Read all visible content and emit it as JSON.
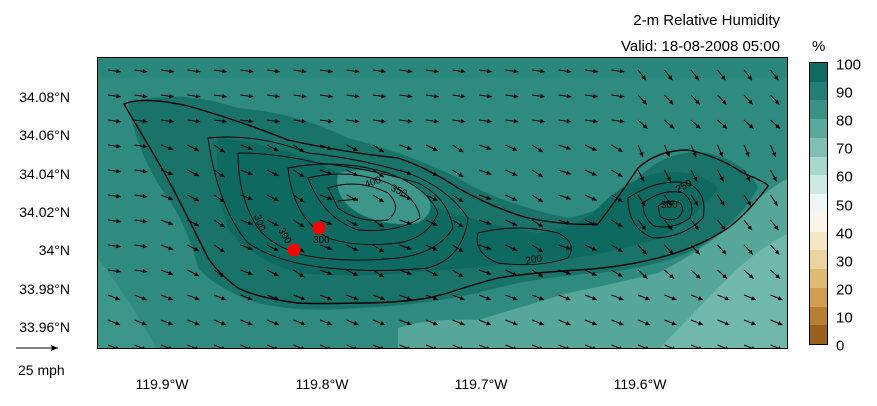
{
  "title": "2-m Relative Humidity",
  "valid_time": "Valid: 18-08-2008 05:00",
  "colorbar": {
    "unit": "%",
    "ticks": [
      "100",
      "90",
      "80",
      "70",
      "60",
      "50",
      "40",
      "30",
      "20",
      "10",
      "0"
    ],
    "colors_top_to_bottom": [
      "#0f6b62",
      "#237f75",
      "#3a9186",
      "#5aa89b",
      "#7fc0b3",
      "#a8d7cd",
      "#cde9e3",
      "#eef7f5",
      "#f9f5ea",
      "#f5e6c4",
      "#ecd49d",
      "#dfbb74",
      "#cf9e4f",
      "#b97f31",
      "#9a5f1b"
    ]
  },
  "latitude_labels": [
    "34.08°N",
    "34.06°N",
    "34.04°N",
    "34.02°N",
    "34°N",
    "33.98°N",
    "33.96°N"
  ],
  "longitude_labels": [
    "119.9°W",
    "119.8°W",
    "119.7°W",
    "119.6°W"
  ],
  "reference_vector": {
    "label": "25 mph"
  },
  "contour_labels": [
    "400",
    "350",
    "300",
    "300",
    "300",
    "200",
    "250",
    "300"
  ],
  "map_colors": {
    "very_humid": "#0e6a60",
    "humid": "#237f75",
    "moist": "#2f8b80",
    "less_moist": "#3c968a",
    "drier": "#56a799",
    "driest": "#6fb8aa"
  },
  "markers": [
    {
      "name": "station-1",
      "color": "#ff0000"
    },
    {
      "name": "station-2",
      "color": "#ff0000"
    }
  ]
}
